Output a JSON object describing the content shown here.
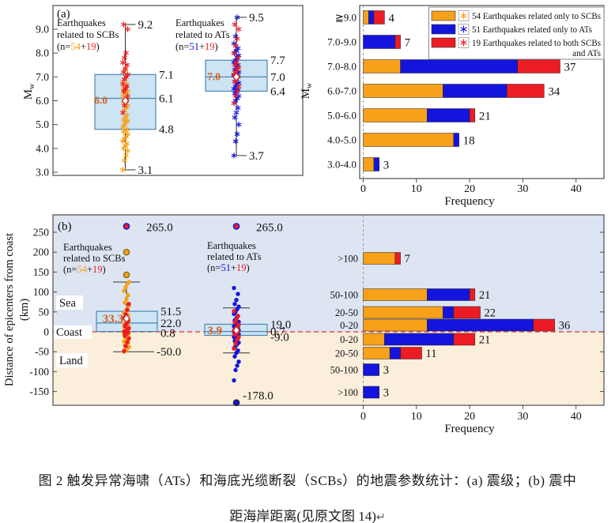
{
  "colors": {
    "scb_only": "#F7A11A",
    "at_only": "#1414DC",
    "both": "#EC1C24",
    "box_fill": "#CDE4F5",
    "box_edge": "#4D87B0",
    "sea_bg": "#DDE5F3",
    "land_bg": "#FBEFDC",
    "mean_label": "#D85C1A",
    "mean_marker_edge": "#CC2222",
    "coast_line": "#E03030",
    "zero_line": "#999999",
    "frame": "#4D4D4D",
    "text": "#111111"
  },
  "panel_tags": {
    "a": "(a)",
    "b": "(b)"
  },
  "legend": {
    "entries": [
      {
        "color": "scb_only",
        "lines": [
          "54 Earthquakes related only to SCBs"
        ]
      },
      {
        "color": "at_only",
        "lines": [
          "51 Earthquakes related only to ATs"
        ]
      },
      {
        "color": "both",
        "lines": [
          "19 Earthquakes related to both SCBs",
          "and ATs"
        ]
      }
    ]
  },
  "chart_data": [
    {
      "id": "a_boxplots",
      "type": "boxplot",
      "ylabel_main": "M",
      "ylabel_sub": "w",
      "ylim": [
        3.0,
        9.6
      ],
      "ytick_values": [
        9,
        8,
        7,
        6,
        5,
        4,
        3
      ],
      "ytick_labels": [
        "9.0",
        "8.0",
        "7.0",
        "6.0",
        "5.0",
        "4.0",
        "3.0"
      ],
      "groups": [
        {
          "key": "scb",
          "title_lines": [
            "Earthquakes",
            "related to SCBs"
          ],
          "n_parts": [
            {
              "t": "(n=",
              "c": "text"
            },
            {
              "t": "54",
              "c": "scb_only"
            },
            {
              "t": "+",
              "c": "text"
            },
            {
              "t": "19",
              "c": "both"
            },
            {
              "t": ")",
              "c": "text"
            }
          ],
          "stats": {
            "min": 3.1,
            "q1": 4.8,
            "median": 6.1,
            "mean": 6.0,
            "q3": 7.1,
            "max": 9.2
          },
          "stat_labels": {
            "max": "9.2",
            "q3": "7.1",
            "median": "6.1",
            "q1": "4.8",
            "min": "3.1",
            "mean": "6.0"
          },
          "scatter": [
            {
              "color": "scb_only",
              "values": [
                3.1,
                3.5,
                3.7,
                3.9,
                4.0,
                4.1,
                4.2,
                4.3,
                4.4,
                4.5,
                4.6,
                4.7,
                4.75,
                4.8,
                4.9,
                5.0,
                5.1,
                5.15,
                5.2,
                5.3,
                5.4,
                5.5,
                5.6,
                5.7,
                5.8,
                5.9,
                6.0,
                6.1,
                6.2,
                6.3,
                6.35,
                6.4,
                6.5,
                6.6,
                6.7,
                6.8,
                6.9,
                7.0,
                7.1,
                7.2,
                7.3,
                7.5
              ]
            },
            {
              "color": "both",
              "values": [
                5.5,
                5.8,
                6.0,
                6.2,
                6.4,
                6.5,
                6.6,
                6.7,
                6.9,
                7.0,
                7.1,
                7.2,
                7.35,
                7.5,
                7.6,
                7.8,
                8.0,
                9.0,
                9.2
              ]
            }
          ]
        },
        {
          "key": "at",
          "title_lines": [
            "Earthquakes",
            "related to ATs"
          ],
          "n_parts": [
            {
              "t": "(n=",
              "c": "text"
            },
            {
              "t": "51",
              "c": "at_only"
            },
            {
              "t": "+",
              "c": "text"
            },
            {
              "t": "19",
              "c": "both"
            },
            {
              "t": ")",
              "c": "text"
            }
          ],
          "stats": {
            "min": 3.7,
            "q1": 6.4,
            "median": 7.0,
            "mean": 7.0,
            "q3": 7.7,
            "max": 9.5
          },
          "stat_labels": {
            "max": "9.5",
            "q3": "7.7",
            "median": "7.0",
            "q1": "6.4",
            "min": "3.7",
            "mean": "7.0"
          },
          "scatter": [
            {
              "color": "at_only",
              "values": [
                3.7,
                4.3,
                4.6,
                5.0,
                5.3,
                5.5,
                5.7,
                5.9,
                6.0,
                6.1,
                6.2,
                6.3,
                6.4,
                6.45,
                6.5,
                6.6,
                6.7,
                6.75,
                6.8,
                6.9,
                7.0,
                7.05,
                7.1,
                7.15,
                7.2,
                7.3,
                7.4,
                7.5,
                7.6,
                7.7,
                7.8,
                7.9,
                8.0,
                8.1,
                8.2,
                8.4,
                8.7,
                9.5
              ]
            },
            {
              "color": "both",
              "values": [
                5.9,
                6.2,
                6.4,
                6.6,
                6.8,
                6.9,
                7.0,
                7.1,
                7.2,
                7.3,
                7.4,
                7.5,
                7.6,
                7.8,
                8.0,
                8.3,
                8.6,
                9.0,
                9.2
              ]
            }
          ]
        }
      ]
    },
    {
      "id": "a_bars",
      "type": "bar",
      "orientation": "horizontal",
      "xlabel": "Frequency",
      "ylabel_main": "M",
      "ylabel_sub": "w",
      "categories": [
        "≧9.0",
        "7.0-9.0",
        "7.0-8.0",
        "6.0-7.0",
        "5.0-6.0",
        "4.0-5.0",
        "3.0-4.0"
      ],
      "series": [
        {
          "name": "54 Earthquakes related only to SCBs",
          "color": "scb_only",
          "values": [
            1,
            0,
            7,
            15,
            12,
            17,
            2
          ]
        },
        {
          "name": "51 Earthquakes related only to ATs",
          "color": "at_only",
          "values": [
            1,
            6,
            22,
            12,
            8,
            1,
            1
          ]
        },
        {
          "name": "19 Earthquakes related to both SCBs and ATs",
          "color": "both",
          "values": [
            2,
            1,
            8,
            7,
            1,
            0,
            0
          ]
        }
      ],
      "totals": [
        "4",
        "7",
        "37",
        "34",
        "21",
        "18",
        "3"
      ],
      "xticks": [
        "0",
        "10",
        "20",
        "30",
        "40"
      ],
      "xlim": [
        0,
        45
      ]
    },
    {
      "id": "b_boxplots",
      "type": "boxplot",
      "ylabel_lines": [
        "Distance of epicenters from coast",
        "(km)"
      ],
      "ylim": [
        -185,
        280
      ],
      "ytick_values": [
        250,
        200,
        150,
        100,
        50,
        0,
        -50,
        -100,
        -150
      ],
      "ytick_labels": [
        "250",
        "200",
        "150",
        "100",
        "50",
        "0",
        "-50",
        "-100",
        "-150"
      ],
      "zones": {
        "sea": "Sea",
        "coast": "Coast",
        "land": "Land"
      },
      "groups": [
        {
          "key": "scb",
          "title_lines": [
            "Earthquakes",
            "related to SCBs"
          ],
          "n_parts": [
            {
              "t": "(n=",
              "c": "text"
            },
            {
              "t": "54",
              "c": "scb_only"
            },
            {
              "t": "+",
              "c": "text"
            },
            {
              "t": "19",
              "c": "both"
            },
            {
              "t": ")",
              "c": "text"
            }
          ],
          "stats": {
            "whisker_low": -50,
            "q1": 0.8,
            "median": 22.0,
            "mean": 33.3,
            "q3": 51.5,
            "whisker_high": 125
          },
          "stat_labels": {
            "q3": "51.5",
            "median": "22.0",
            "q1": "0.8",
            "whisker_low": "-50.0",
            "mean": "33.3"
          },
          "outliers": [
            {
              "v": 265,
              "fill": "both",
              "ring": "at_only",
              "label": "265.0"
            },
            {
              "v": 200,
              "fill": "scb_only",
              "ring": "#8a6d1a"
            },
            {
              "v": 143,
              "fill": "scb_only",
              "ring": "#8a6d1a"
            }
          ],
          "scatter": [
            {
              "color": "scb_only",
              "values": [
                -50,
                -46,
                -42,
                -38,
                -34,
                -30,
                -27,
                -24,
                -21,
                -18,
                -15,
                -12,
                -10,
                -8,
                -6,
                -4,
                -2,
                -1,
                0,
                1,
                2,
                3,
                5,
                7,
                9,
                11,
                14,
                17,
                20,
                23,
                26,
                30,
                34,
                38,
                42,
                47,
                52,
                58,
                65,
                73,
                82,
                92,
                103,
                112,
                120,
                125
              ]
            },
            {
              "color": "both",
              "values": [
                -48,
                -36,
                -26,
                -17,
                -10,
                -5,
                -2,
                0,
                2,
                5,
                9,
                14,
                20,
                27,
                35,
                44,
                55,
                70
              ]
            }
          ]
        },
        {
          "key": "at",
          "title_lines": [
            "Earthquakes",
            "related to ATs"
          ],
          "n_parts": [
            {
              "t": "(n=",
              "c": "text"
            },
            {
              "t": "51",
              "c": "at_only"
            },
            {
              "t": "+",
              "c": "text"
            },
            {
              "t": "19",
              "c": "both"
            },
            {
              "t": ")",
              "c": "text"
            }
          ],
          "stats": {
            "whisker_low": -53,
            "q1": -9.0,
            "median": 0.7,
            "mean": 3.9,
            "q3": 19.0,
            "whisker_high": 60
          },
          "stat_labels": {
            "q3": "19.0",
            "median": "0.7",
            "q1": "-9.0",
            "mean": "3.9"
          },
          "outliers": [
            {
              "v": 265,
              "fill": "both",
              "ring": "at_only",
              "label": "265.0"
            },
            {
              "v": -178,
              "fill": "at_only",
              "ring": "#223",
              "label": "-178.0"
            }
          ],
          "scatter": [
            {
              "color": "at_only",
              "values": [
                -122,
                -96,
                -85,
                -75,
                -62,
                -53,
                -47,
                -41,
                -36,
                -31,
                -27,
                -23,
                -19,
                -16,
                -13,
                -10,
                -8,
                -6,
                -4,
                -2,
                -1,
                0,
                1,
                2,
                4,
                6,
                8,
                11,
                14,
                17,
                21,
                25,
                29,
                34,
                39,
                45,
                51,
                57,
                63,
                70,
                80,
                95,
                110
              ]
            },
            {
              "color": "both",
              "values": [
                -42,
                -30,
                -20,
                -13,
                -7,
                -3,
                0,
                3,
                7,
                12,
                18,
                24,
                31,
                40,
                52
              ]
            }
          ]
        }
      ]
    },
    {
      "id": "b_bars",
      "type": "bar",
      "orientation": "horizontal",
      "xlabel": "Frequency",
      "categories": [
        ">100",
        "50-100",
        "20-50",
        "0-20",
        "0-20",
        "20-50",
        "50-100",
        ">100"
      ],
      "series": [
        {
          "name": "54 Earthquakes related only to SCBs",
          "color": "scb_only",
          "values": [
            6,
            12,
            15,
            12,
            4,
            5,
            0,
            0
          ]
        },
        {
          "name": "51 Earthquakes related only to ATs",
          "color": "at_only",
          "values": [
            0,
            8,
            2,
            20,
            13,
            2,
            3,
            3
          ]
        },
        {
          "name": "19 Earthquakes related to both SCBs and ATs",
          "color": "both",
          "values": [
            1,
            1,
            5,
            4,
            4,
            4,
            0,
            0
          ]
        }
      ],
      "totals": [
        "7",
        "21",
        "22",
        "36",
        "21",
        "11",
        "3",
        "3"
      ],
      "xticks": [
        "0",
        "10",
        "20",
        "30",
        "40"
      ],
      "xlim": [
        0,
        45
      ]
    }
  ],
  "caption": {
    "line1": "图 2 触发异常海啸（ATs）和海底光缆断裂（SCBs）的地震参数统计：(a) 震级；(b) 震中",
    "line2": "距海岸距离(见原文图 14)",
    "pilcrow": "↵"
  }
}
